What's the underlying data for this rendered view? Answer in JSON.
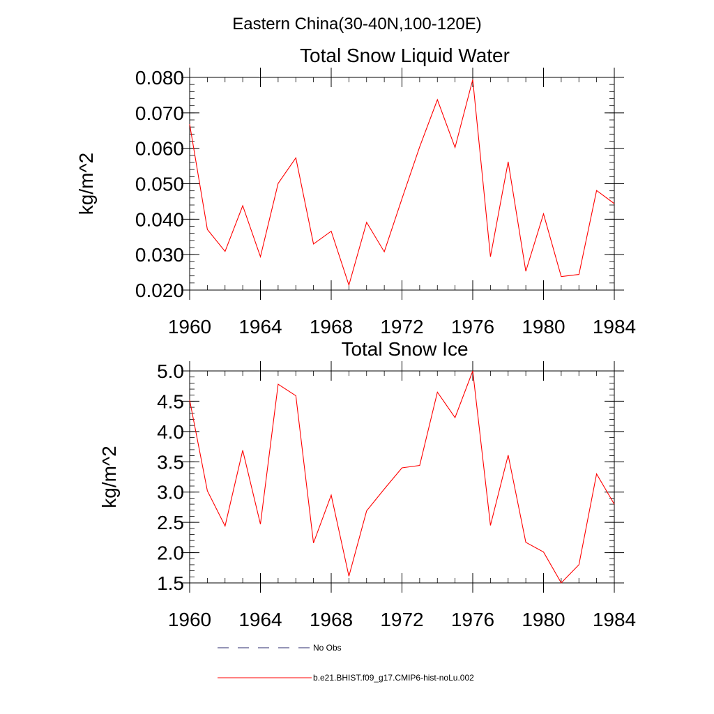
{
  "figure": {
    "title": "Eastern China(30-40N,100-120E)"
  },
  "legend": {
    "entries": [
      {
        "label": "No Obs",
        "color": "#2a2a6e",
        "dash": true
      },
      {
        "label": "b.e21.BHIST.f09_g17.CMIP6-hist-noLu.002",
        "color": "#ff0000",
        "dash": false
      }
    ]
  },
  "chart_data": [
    {
      "type": "line",
      "title": "Total Snow Liquid Water",
      "xlabel": "",
      "ylabel": "kg/m^2",
      "xlim": [
        1960,
        1984
      ],
      "ylim": [
        0.02,
        0.08
      ],
      "x_ticks": [
        1960,
        1964,
        1968,
        1972,
        1976,
        1980,
        1984
      ],
      "y_ticks": [
        0.02,
        0.03,
        0.04,
        0.05,
        0.06,
        0.07,
        0.08
      ],
      "y_tick_labels": [
        "0.020",
        "0.030",
        "0.040",
        "0.050",
        "0.060",
        "0.070",
        "0.080"
      ],
      "x_tick_labels": [
        "1960",
        "1964",
        "1968",
        "1972",
        "1976",
        "1980",
        "1984"
      ],
      "series": [
        {
          "name": "b.e21.BHIST.f09_g17.CMIP6-hist-noLu.002",
          "color": "#ff0000",
          "x": [
            1960,
            1961,
            1962,
            1963,
            1964,
            1965,
            1966,
            1967,
            1968,
            1969,
            1970,
            1971,
            1972,
            1973,
            1974,
            1975,
            1976,
            1977,
            1978,
            1979,
            1980,
            1981,
            1982,
            1983,
            1984
          ],
          "values": [
            0.0668,
            0.0371,
            0.0309,
            0.0438,
            0.0294,
            0.0501,
            0.0573,
            0.033,
            0.0366,
            0.0214,
            0.0391,
            0.0308,
            0.0458,
            0.0604,
            0.0737,
            0.0602,
            0.0794,
            0.0294,
            0.0562,
            0.0253,
            0.0415,
            0.0238,
            0.0244,
            0.0481,
            0.0444
          ]
        }
      ]
    },
    {
      "type": "line",
      "title": "Total Snow Ice",
      "xlabel": "",
      "ylabel": "kg/m^2",
      "xlim": [
        1960,
        1984
      ],
      "ylim": [
        1.5,
        5.0
      ],
      "x_ticks": [
        1960,
        1964,
        1968,
        1972,
        1976,
        1980,
        1984
      ],
      "y_ticks": [
        1.5,
        2.0,
        2.5,
        3.0,
        3.5,
        4.0,
        4.5,
        5.0
      ],
      "y_tick_labels": [
        "1.5",
        "2.0",
        "2.5",
        "3.0",
        "3.5",
        "4.0",
        "4.5",
        "5.0"
      ],
      "x_tick_labels": [
        "1960",
        "1964",
        "1968",
        "1972",
        "1976",
        "1980",
        "1984"
      ],
      "series": [
        {
          "name": "b.e21.BHIST.f09_g17.CMIP6-hist-noLu.002",
          "color": "#ff0000",
          "x": [
            1960,
            1961,
            1962,
            1963,
            1964,
            1965,
            1966,
            1967,
            1968,
            1969,
            1970,
            1971,
            1972,
            1973,
            1974,
            1975,
            1976,
            1977,
            1978,
            1979,
            1980,
            1981,
            1982,
            1983,
            1984
          ],
          "values": [
            4.52,
            3.02,
            2.44,
            3.69,
            2.47,
            4.78,
            4.59,
            2.16,
            2.95,
            1.61,
            2.69,
            3.05,
            3.4,
            3.44,
            4.65,
            4.23,
            5.0,
            2.45,
            3.61,
            2.17,
            2.01,
            1.5,
            1.8,
            3.3,
            2.8
          ]
        }
      ]
    }
  ]
}
